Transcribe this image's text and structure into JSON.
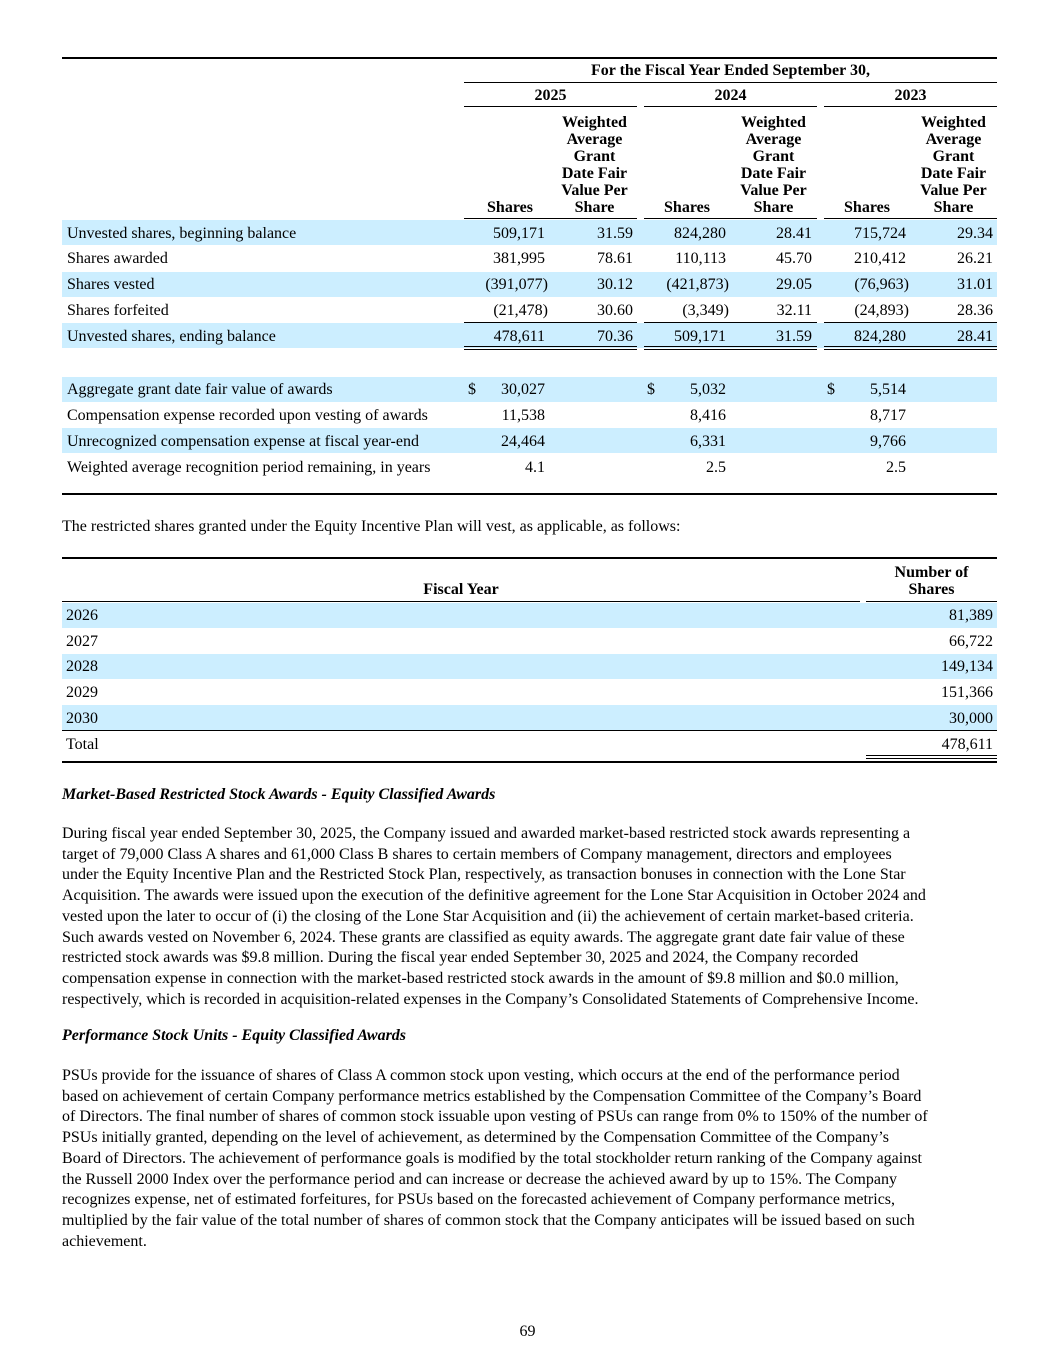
{
  "table1": {
    "header": {
      "period": "For the Fiscal Year Ended September 30,",
      "years": [
        "2025",
        "2024",
        "2023"
      ],
      "col_shares": "Shares",
      "col_wafv": [
        "Weighted",
        "Average",
        "Grant",
        "Date Fair",
        "Value Per",
        "Share"
      ]
    },
    "rows": [
      {
        "label": "Unvested shares, beginning balance",
        "values": [
          "509,171",
          "31.59",
          "824,280",
          "28.41",
          "715,724",
          "29.34"
        ]
      },
      {
        "label": "Shares awarded",
        "values": [
          "381,995",
          "78.61",
          "110,113",
          "45.70",
          "210,412",
          "26.21"
        ]
      },
      {
        "label": "Shares vested",
        "values": [
          "(391,077)",
          "30.12",
          "(421,873)",
          "29.05",
          "(76,963)",
          "31.01"
        ]
      },
      {
        "label": "Shares forfeited",
        "values": [
          "(21,478)",
          "30.60",
          "(3,349)",
          "32.11",
          "(24,893)",
          "28.36"
        ]
      },
      {
        "label": "Unvested shares, ending balance",
        "values": [
          "478,611",
          "70.36",
          "509,171",
          "31.59",
          "824,280",
          "28.41"
        ]
      }
    ],
    "summary_rows": [
      {
        "label": "Aggregate grant date fair value of awards",
        "currency": "$",
        "values": [
          "30,027",
          "5,032",
          "5,514"
        ]
      },
      {
        "label": "Compensation expense recorded upon vesting of awards",
        "values": [
          "11,538",
          "8,416",
          "8,717"
        ]
      },
      {
        "label": "Unrecognized compensation expense at fiscal year-end",
        "values": [
          "24,464",
          "6,331",
          "9,766"
        ]
      },
      {
        "label": "Weighted average recognition period remaining, in years",
        "values": [
          "4.1",
          "2.5",
          "2.5"
        ]
      }
    ]
  },
  "intro_text": "The restricted shares granted under the Equity Incentive Plan will vest, as applicable, as follows:",
  "table2": {
    "col_year": "Fiscal Year",
    "col_shares": [
      "Number of",
      "Shares"
    ],
    "rows": [
      {
        "year": "2026",
        "shares": "81,389"
      },
      {
        "year": "2027",
        "shares": "66,722"
      },
      {
        "year": "2028",
        "shares": "149,134"
      },
      {
        "year": "2029",
        "shares": "151,366"
      },
      {
        "year": "2030",
        "shares": "30,000"
      }
    ],
    "total_label": "Total",
    "total_value": "478,611"
  },
  "section1": {
    "heading": "Market-Based Restricted Stock Awards - Equity Classified Awards",
    "lines": [
      "During fiscal year ended September 30, 2025, the Company issued and awarded market-based restricted stock awards representing a",
      "target of 79,000 Class A shares and 61,000 Class B shares to certain members of Company management, directors and employees",
      "under the Equity Incentive Plan and the Restricted Stock Plan, respectively, as transaction bonuses in connection with the Lone Star",
      "Acquisition. The awards were issued upon the execution of the definitive agreement for the Lone Star Acquisition in October 2024 and",
      "vested upon the later to occur of (i) the closing of the Lone Star Acquisition and (ii) the achievement of certain market-based criteria.",
      "Such awards vested on November 6, 2024. These grants are classified as equity awards. The aggregate grant date fair value of these",
      "restricted stock awards was $9.8 million. During the fiscal year ended September 30, 2025 and 2024, the Company recorded",
      "compensation expense in connection with the market-based restricted stock awards in the amount of $9.8 million and $0.0 million,",
      "respectively, which is recorded in acquisition-related expenses in the Company’s Consolidated Statements of Comprehensive Income."
    ]
  },
  "section2": {
    "heading": "Performance Stock Units - Equity Classified Awards",
    "lines": [
      "PSUs provide for the issuance of shares of Class A common stock upon vesting, which occurs at the end of the performance period",
      "based on achievement of certain Company performance metrics established by the Compensation Committee of the Company’s Board",
      "of Directors. The final number of shares of common stock issuable upon vesting of PSUs can range from 0% to 150% of the number of",
      "PSUs initially granted, depending on the level of achievement, as determined by the Compensation Committee of the Company’s",
      "Board of Directors. The achievement of performance goals is modified by the total stockholder return ranking of the Company against",
      "the Russell 2000 Index over the performance period and can increase or decrease the achieved award by up to 15%. The Company",
      "recognizes expense, net of estimated forfeitures, for PSUs based on the forecasted achievement of Company performance metrics,",
      "multiplied by the fair value of the total number of shares of common stock that the Company anticipates will be issued based on such",
      "achievement."
    ]
  },
  "page_number": "69"
}
